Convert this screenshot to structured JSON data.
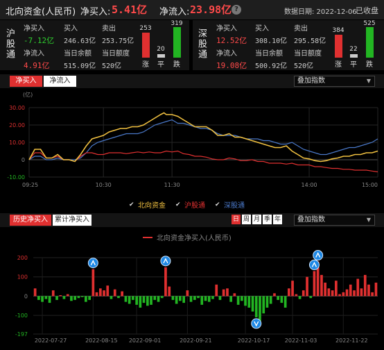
{
  "header": {
    "title": "北向资金(人民币)",
    "net_buy_label": "净买入:",
    "net_buy_value": "5.41亿",
    "net_inflow_label": "净流入:",
    "net_inflow_value": "23.98亿",
    "info_icon": "info-icon",
    "date_label": "数据日期: 2022-12-06",
    "status": "已收盘"
  },
  "shanghai": {
    "name": "沪股通",
    "net_buy_label": "净买入",
    "net_buy_value": "-7.12亿",
    "buy_label": "买入",
    "buy_value": "246.63亿",
    "sell_label": "卖出",
    "sell_value": "253.75亿",
    "net_inflow_label": "净流入",
    "net_inflow_value": "4.91亿",
    "balance_label": "当日余额",
    "balance_value": "515.09亿",
    "quota_label": "当日额度",
    "quota_value": "520亿",
    "up_count": "253",
    "flat_count": "20",
    "down_count": "319",
    "up_label": "涨",
    "flat_label": "平",
    "down_label": "跌"
  },
  "shenzhen": {
    "name": "深股通",
    "net_buy_label": "净买入",
    "net_buy_value": "12.52亿",
    "buy_label": "买入",
    "buy_value": "308.10亿",
    "sell_label": "卖出",
    "sell_value": "295.58亿",
    "net_inflow_label": "净流入",
    "net_inflow_value": "19.08亿",
    "balance_label": "当日余额",
    "balance_value": "500.92亿",
    "quota_label": "当日额度",
    "quota_value": "520亿",
    "up_count": "384",
    "flat_count": "22",
    "down_count": "525",
    "up_label": "涨",
    "flat_label": "平",
    "down_label": "跌"
  },
  "intraday_panel": {
    "tab_net_buy": "净买入",
    "tab_net_inflow": "净流入",
    "overlay_label": "叠加指数",
    "legend": [
      "北向资金",
      "沪股通",
      "深股通"
    ]
  },
  "history_panel": {
    "tab_history": "历史净买入",
    "tab_cumulative": "累计净买入",
    "period_tabs": [
      "日",
      "周",
      "月",
      "季",
      "年"
    ],
    "overlay_label": "叠加指数",
    "legend": "北向资金净买入(人民币)"
  },
  "colors": {
    "north": "#f0c040",
    "shanghai": "#e03030",
    "shenzhen": "#4a78c8",
    "up": "#e03030",
    "down": "#22b522",
    "flat": "#cccccc"
  },
  "chart_data": [
    {
      "type": "line",
      "ylabel": "(亿)",
      "ylim": [
        -10,
        30
      ],
      "yticks": [
        "30.00",
        "20.00",
        "10.00",
        "0",
        "-10.00"
      ],
      "x_ticks": [
        "09:25",
        "10:30",
        "11:30",
        "14:00",
        "15:00"
      ],
      "x_tick_pos": [
        0,
        65,
        125,
        245,
        305
      ],
      "x_end": 305,
      "series": [
        {
          "name": "北向资金",
          "color": "#f0c040",
          "x": [
            0,
            5,
            10,
            15,
            20,
            25,
            30,
            35,
            40,
            45,
            50,
            55,
            60,
            65,
            70,
            75,
            80,
            85,
            90,
            95,
            100,
            105,
            110,
            115,
            118,
            120,
            125,
            130,
            135,
            140,
            145,
            150,
            155,
            160,
            165,
            170,
            175,
            180,
            185,
            190,
            195,
            200,
            205,
            210,
            215,
            220,
            225,
            230,
            235,
            240,
            245,
            250,
            255,
            260,
            265,
            270,
            275,
            280,
            285,
            290,
            295,
            300,
            305
          ],
          "y": [
            0,
            6,
            6,
            1,
            1,
            3,
            0,
            0,
            -1,
            3,
            8,
            12,
            13,
            14,
            16,
            17,
            18,
            18,
            19,
            19,
            20,
            22,
            24,
            26,
            27,
            26,
            26,
            25,
            23,
            21,
            19,
            19,
            19,
            17,
            14,
            14,
            15,
            13,
            13,
            12,
            11,
            10,
            9,
            8,
            7,
            7,
            8,
            5,
            3,
            1,
            0.5,
            -0.5,
            -1,
            -0.5,
            0.5,
            1,
            2,
            2,
            3,
            3,
            4,
            4,
            5
          ]
        },
        {
          "name": "沪股通",
          "color": "#e03030",
          "x": [
            0,
            5,
            10,
            15,
            20,
            25,
            30,
            35,
            40,
            45,
            50,
            55,
            60,
            65,
            70,
            75,
            80,
            85,
            90,
            95,
            100,
            105,
            110,
            115,
            120,
            125,
            130,
            135,
            140,
            145,
            150,
            155,
            160,
            165,
            170,
            175,
            180,
            185,
            190,
            195,
            200,
            205,
            210,
            215,
            220,
            225,
            230,
            235,
            240,
            245,
            250,
            255,
            260,
            265,
            270,
            275,
            280,
            285,
            290,
            295,
            300,
            305
          ],
          "y": [
            0,
            4,
            4,
            1,
            1,
            2,
            0,
            0,
            -1,
            2,
            4,
            4,
            3,
            3,
            4,
            4,
            4,
            3.5,
            4,
            4.5,
            4,
            4.5,
            4,
            4,
            5,
            4.5,
            5,
            3.5,
            3,
            2,
            2,
            1.5,
            0.5,
            0,
            0,
            1,
            0.5,
            -0.5,
            -0.5,
            0,
            -1,
            -1,
            -2,
            -2,
            -2,
            -2.5,
            -2,
            -3,
            -3,
            -3,
            -4,
            -4,
            -4.5,
            -5,
            -5,
            -5.5,
            -5.5,
            -6,
            -6,
            -6,
            -6.5,
            -7
          ]
        },
        {
          "name": "深股通",
          "color": "#4a78c8",
          "x": [
            0,
            5,
            10,
            15,
            20,
            25,
            30,
            35,
            40,
            45,
            50,
            55,
            60,
            65,
            70,
            75,
            80,
            85,
            90,
            95,
            100,
            105,
            110,
            115,
            120,
            125,
            130,
            135,
            140,
            145,
            150,
            155,
            160,
            165,
            170,
            175,
            180,
            185,
            190,
            195,
            200,
            205,
            210,
            215,
            220,
            225,
            230,
            235,
            240,
            245,
            250,
            255,
            260,
            265,
            270,
            275,
            280,
            285,
            290,
            295,
            300,
            305
          ],
          "y": [
            0,
            2,
            2,
            0,
            0,
            1,
            0,
            0,
            0,
            1,
            4,
            8,
            10,
            11,
            12,
            13,
            14,
            15,
            15,
            15,
            16,
            18,
            20,
            21,
            22,
            23,
            21,
            21,
            20,
            19,
            18,
            18,
            17,
            15,
            14,
            14,
            14,
            13,
            12,
            12,
            12,
            11,
            11,
            10,
            9,
            9,
            10,
            8,
            6,
            5,
            4,
            3,
            3,
            4,
            5,
            6,
            7,
            7,
            8,
            9,
            10,
            12
          ]
        }
      ]
    },
    {
      "type": "bar",
      "title": "北向资金净买入(人民币)",
      "ylim": [
        -197,
        200
      ],
      "yticks": [
        "200",
        "100",
        "0",
        "-100",
        "-197"
      ],
      "x_ticks": [
        "2022-07-27",
        "2022-08-15",
        "2022-09-01",
        "2022-09-21",
        "2022-10-17",
        "2022-11-03",
        "2022-11-22"
      ],
      "x_tick_index": [
        2,
        16,
        28,
        42,
        58,
        71,
        85
      ],
      "values": [
        40,
        -20,
        -30,
        -15,
        -35,
        30,
        -20,
        5,
        -15,
        10,
        -25,
        -20,
        -10,
        -5,
        -30,
        -20,
        140,
        20,
        40,
        30,
        55,
        -15,
        35,
        -10,
        25,
        -30,
        -40,
        -20,
        -45,
        -60,
        -35,
        -50,
        -45,
        -20,
        -30,
        -10,
        150,
        50,
        -20,
        -40,
        -25,
        -35,
        30,
        -30,
        -20,
        -10,
        -45,
        -25,
        -30,
        -15,
        60,
        -20,
        35,
        40,
        -30,
        15,
        -45,
        -25,
        -50,
        -60,
        -80,
        -110,
        -130,
        -90,
        -60,
        -40,
        15,
        -20,
        -35,
        -60,
        40,
        80,
        10,
        -15,
        30,
        100,
        -10,
        130,
        180,
        110,
        70,
        40,
        30,
        80,
        10,
        20,
        35,
        60,
        30,
        90,
        40,
        110,
        60,
        20,
        70
      ]
    }
  ]
}
